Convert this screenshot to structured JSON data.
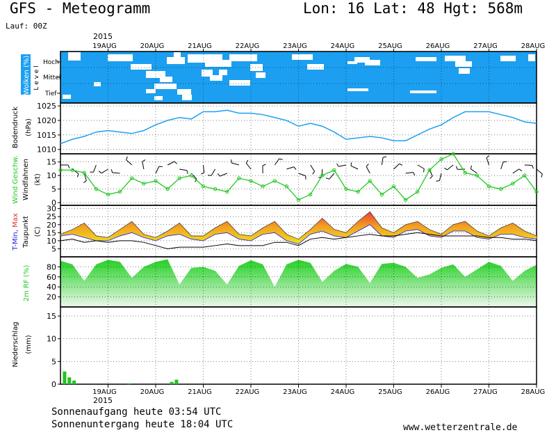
{
  "header": {
    "title": "GFS - Meteogramm",
    "location": "Lon: 16 Lat: 48 Hgt: 568m",
    "run": "Lauf: 00Z"
  },
  "footer": {
    "sunrise": "Sonnenaufgang heute 03:54 UTC",
    "sunset": "Sonnenuntergang heute 18:04 UTC",
    "website": "www.wetterzentrale.de"
  },
  "colors": {
    "cloud_sky": "#1c9ff0",
    "pressure_line": "#1c9ff0",
    "wind_speed": "#23c823",
    "temp_band_low": "#f5d510",
    "temp_band_high": "#ee4040",
    "rh_fill": "#2ed42e",
    "precip_bar": "#22c222"
  },
  "chart_data": [
    {
      "type": "area",
      "panel": "clouds",
      "year": "2015",
      "date_labels": [
        "19AUG",
        "20AUG",
        "21AUG",
        "22AUG",
        "23AUG",
        "24AUG",
        "25AUG",
        "26AUG",
        "27AUG",
        "28AUG"
      ],
      "ylabel": "Wolken (%)",
      "ylabel2": "L e v e l",
      "levels": [
        "Hoch",
        "Mittel",
        "Tief"
      ]
    },
    {
      "type": "line",
      "panel": "pressure",
      "ylabel": "Bodendruck",
      "unit": "(hPa)",
      "ylim": [
        1008.5,
        1026
      ],
      "yticks": [
        1010,
        1015,
        1020,
        1025
      ],
      "x_days": [
        0,
        0.25,
        0.5,
        0.75,
        1,
        1.25,
        1.5,
        1.75,
        2,
        2.25,
        2.5,
        2.75,
        3,
        3.25,
        3.5,
        3.75,
        4,
        4.25,
        4.5,
        4.75,
        5,
        5.25,
        5.5,
        5.75,
        6,
        6.25,
        6.5,
        6.75,
        7,
        7.25,
        7.5,
        7.75,
        8,
        8.25,
        8.5,
        8.75,
        9,
        9.25,
        9.5,
        9.75,
        10
      ],
      "values": [
        1012,
        1013.5,
        1014.5,
        1016,
        1016.5,
        1016,
        1015.5,
        1016.5,
        1018.5,
        1020,
        1021,
        1020.5,
        1023,
        1023,
        1023.5,
        1022.5,
        1022.5,
        1022,
        1021,
        1020,
        1018,
        1019,
        1018,
        1016,
        1013.5,
        1014,
        1014.5,
        1014,
        1013,
        1013,
        1015,
        1017,
        1018.5,
        1021,
        1023,
        1023,
        1023,
        1022,
        1021,
        1019.5,
        1019
      ]
    },
    {
      "type": "line",
      "panel": "wind",
      "ylabel": "Wind Geschw.",
      "ylabel2": "Windfahnen",
      "unit": "(kt)",
      "ylim": [
        -1,
        18
      ],
      "yticks": [
        0,
        5,
        10,
        15
      ],
      "x_days": [
        0,
        0.25,
        0.5,
        0.75,
        1,
        1.25,
        1.5,
        1.75,
        2,
        2.25,
        2.5,
        2.75,
        3,
        3.25,
        3.5,
        3.75,
        4,
        4.25,
        4.5,
        4.75,
        5,
        5.25,
        5.5,
        5.75,
        6,
        6.25,
        6.5,
        6.75,
        7,
        7.25,
        7.5,
        7.75,
        8,
        8.25,
        8.5,
        8.75,
        9,
        9.25,
        9.5,
        9.75,
        10
      ],
      "values": [
        12,
        12,
        11,
        5,
        3,
        4,
        9,
        7,
        8,
        5,
        9,
        10,
        6,
        5,
        4,
        9,
        8,
        6,
        8,
        6,
        1,
        3,
        10,
        12,
        5,
        4,
        8,
        3,
        6,
        1,
        4,
        12,
        16,
        18,
        11,
        10,
        6,
        5,
        7,
        10,
        4
      ]
    },
    {
      "type": "area",
      "panel": "temperature",
      "ylabel": "T-Min, Max",
      "ylabel2": "Taupunkt",
      "unit": "(C)",
      "ylim": [
        0,
        32
      ],
      "yticks": [
        5,
        10,
        15,
        20,
        25,
        30
      ],
      "x_days": [
        0,
        0.25,
        0.5,
        0.75,
        1,
        1.25,
        1.5,
        1.75,
        2,
        2.25,
        2.5,
        2.75,
        3,
        3.25,
        3.5,
        3.75,
        4,
        4.25,
        4.5,
        4.75,
        5,
        5.25,
        5.5,
        5.75,
        6,
        6.25,
        6.5,
        6.75,
        7,
        7.25,
        7.5,
        7.75,
        8,
        8.25,
        8.5,
        8.75,
        9,
        9.25,
        9.5,
        9.75,
        10
      ],
      "tmin": [
        13,
        14,
        12,
        10,
        10,
        13,
        15,
        12,
        10,
        13,
        14,
        11,
        10,
        14,
        15,
        11,
        10,
        14,
        15,
        10,
        8,
        14,
        16,
        13,
        12,
        16,
        20,
        13,
        12,
        16,
        17,
        13,
        12,
        16,
        16,
        12,
        11,
        14,
        14,
        12,
        11
      ],
      "tmax": [
        14,
        17,
        21,
        13,
        12,
        17,
        22,
        14,
        12,
        16,
        21,
        13,
        13,
        18,
        22,
        14,
        13,
        18,
        22,
        14,
        11,
        17,
        24,
        17,
        15,
        22,
        28,
        18,
        15,
        20,
        22,
        17,
        14,
        20,
        22,
        16,
        13,
        18,
        21,
        16,
        13
      ],
      "dewpoint": [
        10,
        11,
        9,
        10,
        9,
        10,
        10,
        9,
        7,
        5,
        6,
        6,
        6,
        7,
        8,
        7,
        7,
        7,
        9,
        9,
        7,
        11,
        12,
        11,
        12,
        13,
        14,
        13,
        13,
        14,
        15,
        14,
        13,
        13,
        13,
        13,
        12,
        12,
        11,
        11,
        10
      ]
    },
    {
      "type": "area",
      "panel": "humidity",
      "ylabel": "2m RF (%)",
      "ylim": [
        0,
        100
      ],
      "yticks": [
        20,
        40,
        60,
        80
      ],
      "x_days": [
        0,
        0.25,
        0.5,
        0.75,
        1,
        1.25,
        1.5,
        1.75,
        2,
        2.25,
        2.5,
        2.75,
        3,
        3.25,
        3.5,
        3.75,
        4,
        4.25,
        4.5,
        4.75,
        5,
        5.25,
        5.5,
        5.75,
        6,
        6.25,
        6.5,
        6.75,
        7,
        7.25,
        7.5,
        7.75,
        8,
        8.25,
        8.5,
        8.75,
        9,
        9.25,
        9.5,
        9.75,
        10
      ],
      "values": [
        92,
        85,
        52,
        85,
        94,
        90,
        58,
        80,
        90,
        95,
        45,
        78,
        80,
        72,
        45,
        82,
        93,
        85,
        40,
        85,
        94,
        88,
        50,
        72,
        86,
        80,
        48,
        86,
        88,
        80,
        58,
        65,
        78,
        85,
        60,
        75,
        90,
        82,
        52,
        72,
        84
      ]
    },
    {
      "type": "bar",
      "panel": "precipitation",
      "ylabel": "Niederschlag",
      "unit": "(mm)",
      "ylim": [
        0,
        17
      ],
      "yticks": [
        0,
        5,
        10,
        15
      ],
      "x_days": [
        0.05,
        0.15,
        0.25,
        1.4,
        2.3,
        2.4
      ],
      "values": [
        2.8,
        1.5,
        0.8,
        0.2,
        0.5,
        1.0
      ]
    }
  ]
}
